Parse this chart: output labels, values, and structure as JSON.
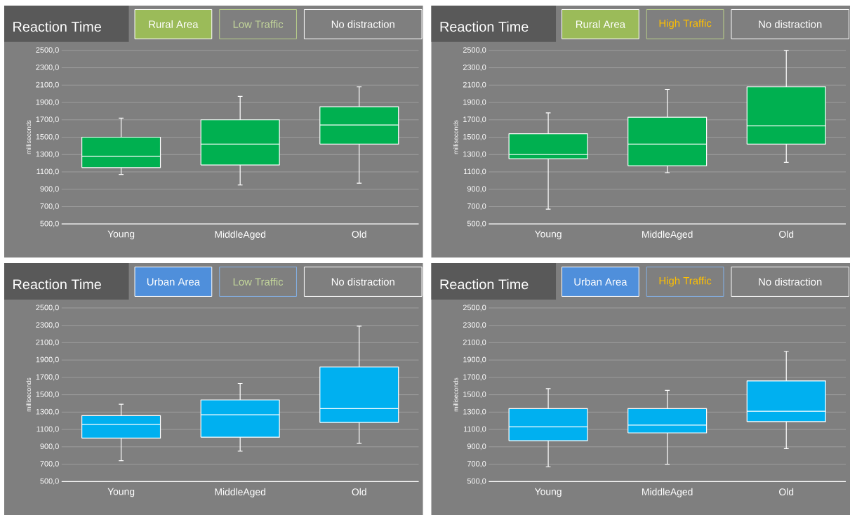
{
  "chart_data": [
    {
      "type": "box",
      "title": "Reaction Time",
      "annotations": [
        "Rural Area",
        "Low Traffic",
        "No distraction"
      ],
      "ylabel": "milliseconds",
      "categories": [
        "Young",
        "MiddleAged",
        "Old"
      ],
      "color": "#00b050",
      "grid": "y",
      "ylim": [
        500,
        2500
      ],
      "yticks": [
        {
          "value": 500,
          "label": "500,0"
        },
        {
          "value": 700,
          "label": "700,0"
        },
        {
          "value": 900,
          "label": "900,0"
        },
        {
          "value": 1100,
          "label": "1100,0"
        },
        {
          "value": 1300,
          "label": "1300,0"
        },
        {
          "value": 1500,
          "label": "1500,0"
        },
        {
          "value": 1700,
          "label": "1700,0"
        },
        {
          "value": 1900,
          "label": "1900,0"
        },
        {
          "value": 2100,
          "label": "2100,0"
        },
        {
          "value": 2300,
          "label": "2300,0"
        },
        {
          "value": 2500,
          "label": "2500,0"
        }
      ],
      "boxes": [
        {
          "low": 1070,
          "q1": 1150,
          "median": 1280,
          "q3": 1500,
          "high": 1720
        },
        {
          "low": 950,
          "q1": 1180,
          "median": 1420,
          "q3": 1700,
          "high": 1970
        },
        {
          "low": 970,
          "q1": 1420,
          "median": 1640,
          "q3": 1850,
          "high": 2080
        }
      ]
    },
    {
      "type": "box",
      "title": "Reaction Time",
      "annotations": [
        "Rural Area",
        "High Traffic",
        "No distraction"
      ],
      "ylabel": "milliseconds",
      "categories": [
        "Young",
        "MiddleAged",
        "Old"
      ],
      "color": "#00b050",
      "grid": "y",
      "ylim": [
        500,
        2500
      ],
      "yticks": [
        {
          "value": 500,
          "label": "500,0"
        },
        {
          "value": 700,
          "label": "700,0"
        },
        {
          "value": 900,
          "label": "900,0"
        },
        {
          "value": 1100,
          "label": "1100,0"
        },
        {
          "value": 1300,
          "label": "1300,0"
        },
        {
          "value": 1500,
          "label": "1500,0"
        },
        {
          "value": 1700,
          "label": "1700,0"
        },
        {
          "value": 1900,
          "label": "1900,0"
        },
        {
          "value": 2100,
          "label": "2100,0"
        },
        {
          "value": 2300,
          "label": "2300,0"
        },
        {
          "value": 2500,
          "label": "2500,0"
        }
      ],
      "boxes": [
        {
          "low": 670,
          "q1": 1250,
          "median": 1300,
          "q3": 1540,
          "high": 1780
        },
        {
          "low": 1090,
          "q1": 1170,
          "median": 1420,
          "q3": 1730,
          "high": 2050
        },
        {
          "low": 1210,
          "q1": 1420,
          "median": 1630,
          "q3": 2080,
          "high": 2500
        }
      ]
    },
    {
      "type": "box",
      "title": "Reaction Time",
      "annotations": [
        "Urban Area",
        "Low Traffic",
        "No distraction"
      ],
      "ylabel": "milliseconds",
      "categories": [
        "Young",
        "MiddleAged",
        "Old"
      ],
      "color": "#00b0f0",
      "grid": "y",
      "ylim": [
        500,
        2500
      ],
      "yticks": [
        {
          "value": 500,
          "label": "500,0"
        },
        {
          "value": 700,
          "label": "700,0"
        },
        {
          "value": 900,
          "label": "900,0"
        },
        {
          "value": 1100,
          "label": "1100,0"
        },
        {
          "value": 1300,
          "label": "1300,0"
        },
        {
          "value": 1500,
          "label": "1500,0"
        },
        {
          "value": 1700,
          "label": "1700,0"
        },
        {
          "value": 1900,
          "label": "1900,0"
        },
        {
          "value": 2100,
          "label": "2100,0"
        },
        {
          "value": 2300,
          "label": "2300,0"
        },
        {
          "value": 2500,
          "label": "2500,0"
        }
      ],
      "boxes": [
        {
          "low": 740,
          "q1": 1000,
          "median": 1160,
          "q3": 1260,
          "high": 1390
        },
        {
          "low": 850,
          "q1": 1010,
          "median": 1270,
          "q3": 1440,
          "high": 1630
        },
        {
          "low": 940,
          "q1": 1180,
          "median": 1340,
          "q3": 1820,
          "high": 2290
        }
      ]
    },
    {
      "type": "box",
      "title": "Reaction Time",
      "annotations": [
        "Urban Area",
        "High Traffic",
        "No distraction"
      ],
      "ylabel": "milliseconds",
      "categories": [
        "Young",
        "MiddleAged",
        "Old"
      ],
      "color": "#00b0f0",
      "grid": "y",
      "ylim": [
        500,
        2500
      ],
      "yticks": [
        {
          "value": 500,
          "label": "500,0"
        },
        {
          "value": 700,
          "label": "700,0"
        },
        {
          "value": 900,
          "label": "900,0"
        },
        {
          "value": 1100,
          "label": "1100,0"
        },
        {
          "value": 1300,
          "label": "1300,0"
        },
        {
          "value": 1500,
          "label": "1500,0"
        },
        {
          "value": 1700,
          "label": "1700,0"
        },
        {
          "value": 1900,
          "label": "1900,0"
        },
        {
          "value": 2100,
          "label": "2100,0"
        },
        {
          "value": 2300,
          "label": "2300,0"
        },
        {
          "value": 2500,
          "label": "2500,0"
        }
      ],
      "boxes": [
        {
          "low": 670,
          "q1": 970,
          "median": 1130,
          "q3": 1340,
          "high": 1570
        },
        {
          "low": 700,
          "q1": 1060,
          "median": 1150,
          "q3": 1340,
          "high": 1550
        },
        {
          "low": 880,
          "q1": 1190,
          "median": 1310,
          "q3": 1660,
          "high": 2000
        }
      ]
    }
  ]
}
